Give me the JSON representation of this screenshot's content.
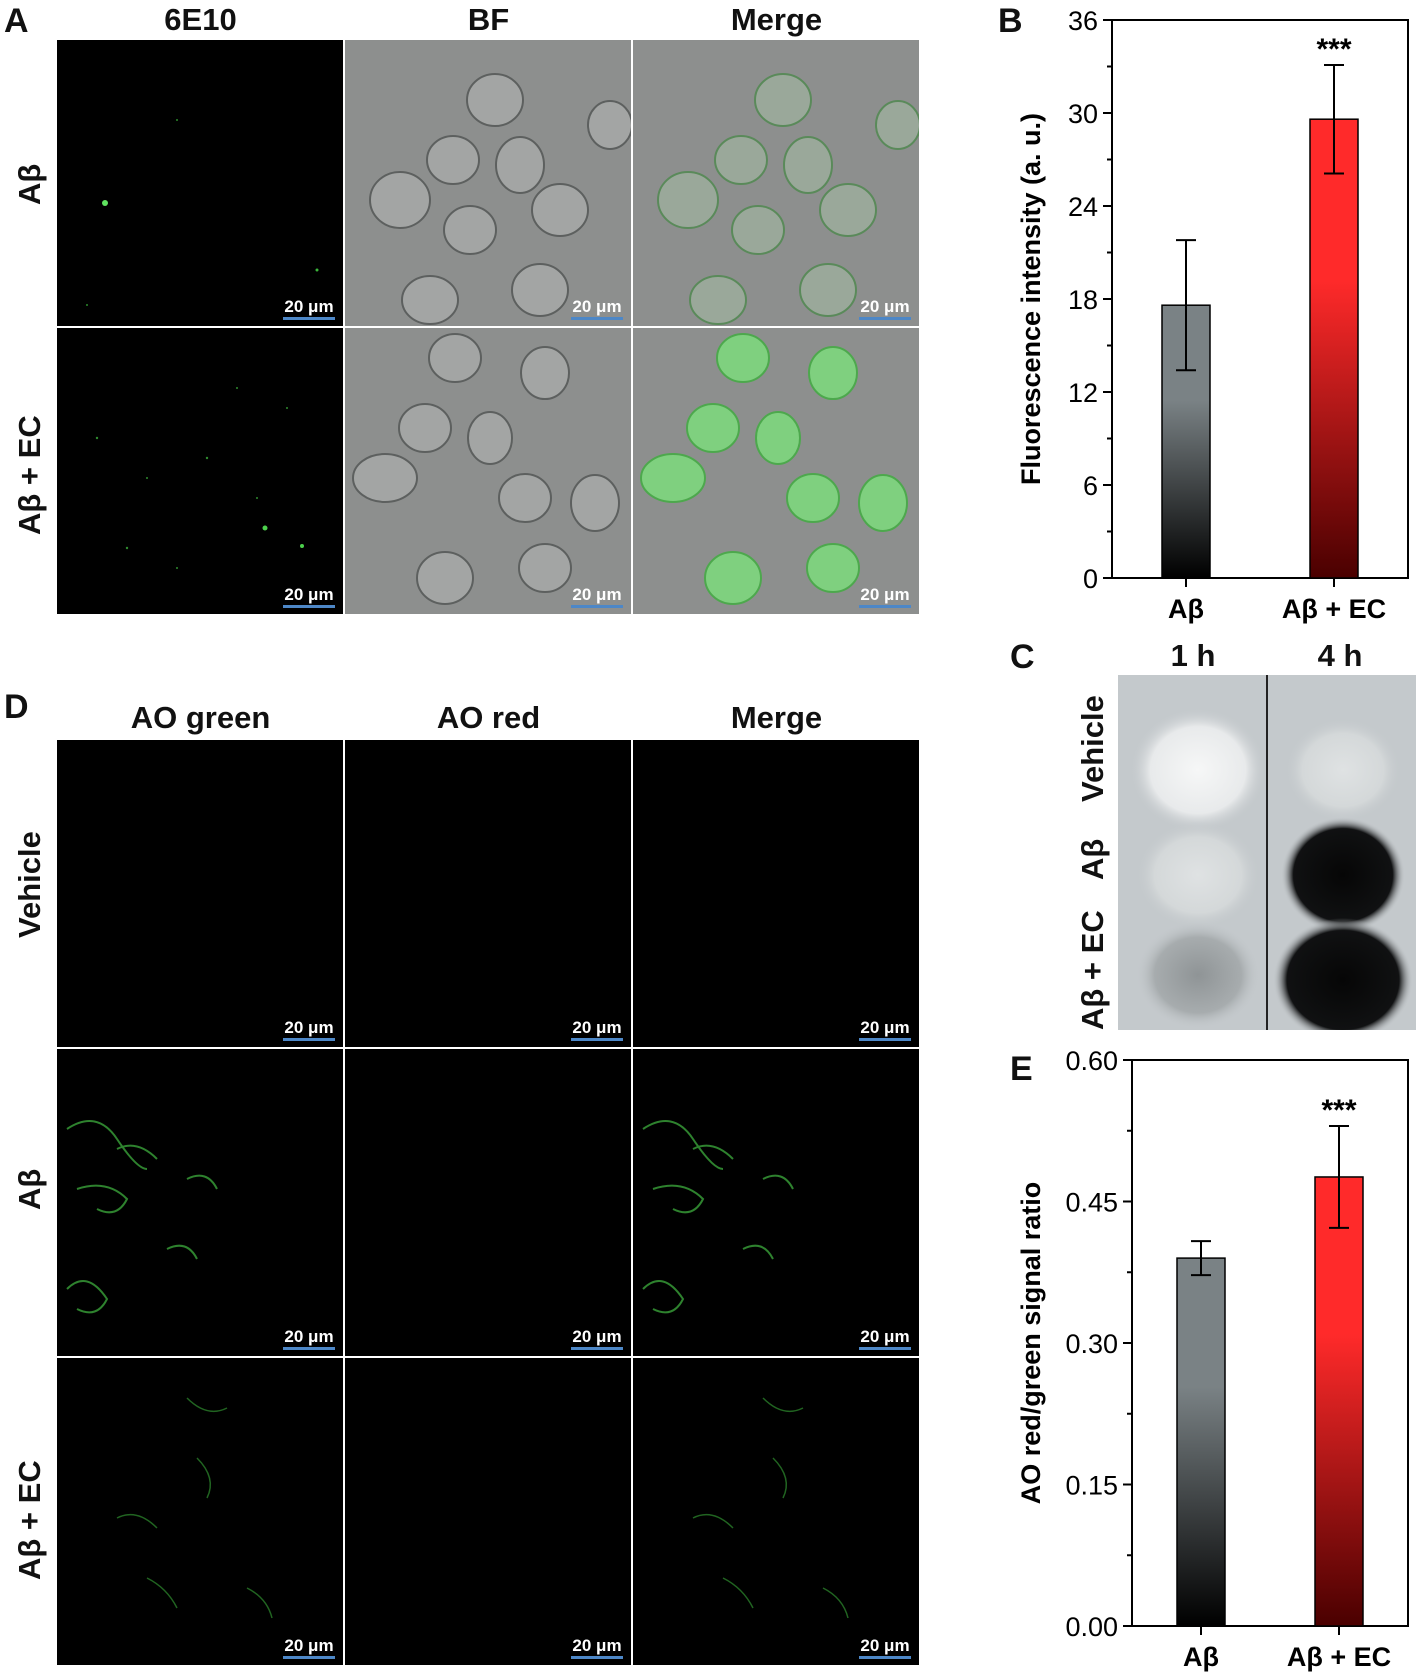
{
  "panel_A": {
    "label": "A",
    "columns": [
      "6E10",
      "BF",
      "Merge"
    ],
    "rows": [
      "Aβ",
      "Aβ + EC"
    ],
    "scale_bar": "20 μm"
  },
  "panel_D": {
    "label": "D",
    "columns": [
      "AO green",
      "AO red",
      "Merge"
    ],
    "rows": [
      "Vehicle",
      "Aβ",
      "Aβ + EC"
    ],
    "scale_bar": "20 μm"
  },
  "panel_C": {
    "label": "C",
    "columns": [
      "1 h",
      "4 h"
    ],
    "rows": [
      "Vehicle",
      "Aβ",
      "Aβ + EC"
    ]
  },
  "chart_data": [
    {
      "panel": "B",
      "type": "bar",
      "categories": [
        "Aβ",
        "Aβ + EC"
      ],
      "values": [
        17.6,
        29.6
      ],
      "errors": [
        4.2,
        3.5
      ],
      "significance": [
        "",
        "***"
      ],
      "ylabel": "Fluorescence intensity (a. u.)",
      "ylim": [
        0,
        36
      ],
      "yticks": [
        "0",
        "6",
        "12",
        "18",
        "24",
        "30",
        "36"
      ],
      "bar_colors": [
        [
          "#7a8285",
          "#000000"
        ],
        [
          "#ff2a2a",
          "#4a0000"
        ]
      ]
    },
    {
      "panel": "E",
      "type": "bar",
      "categories": [
        "Aβ",
        "Aβ + EC"
      ],
      "values": [
        0.39,
        0.476
      ],
      "errors": [
        0.018,
        0.054
      ],
      "significance": [
        "",
        "***"
      ],
      "ylabel": "AO red/green signal ratio",
      "ylim": [
        0,
        0.6
      ],
      "yticks": [
        "0.00",
        "0.15",
        "0.30",
        "0.45",
        "0.60"
      ],
      "bar_colors": [
        [
          "#7a8285",
          "#000000"
        ],
        [
          "#ff2a2a",
          "#4a0000"
        ]
      ]
    }
  ]
}
